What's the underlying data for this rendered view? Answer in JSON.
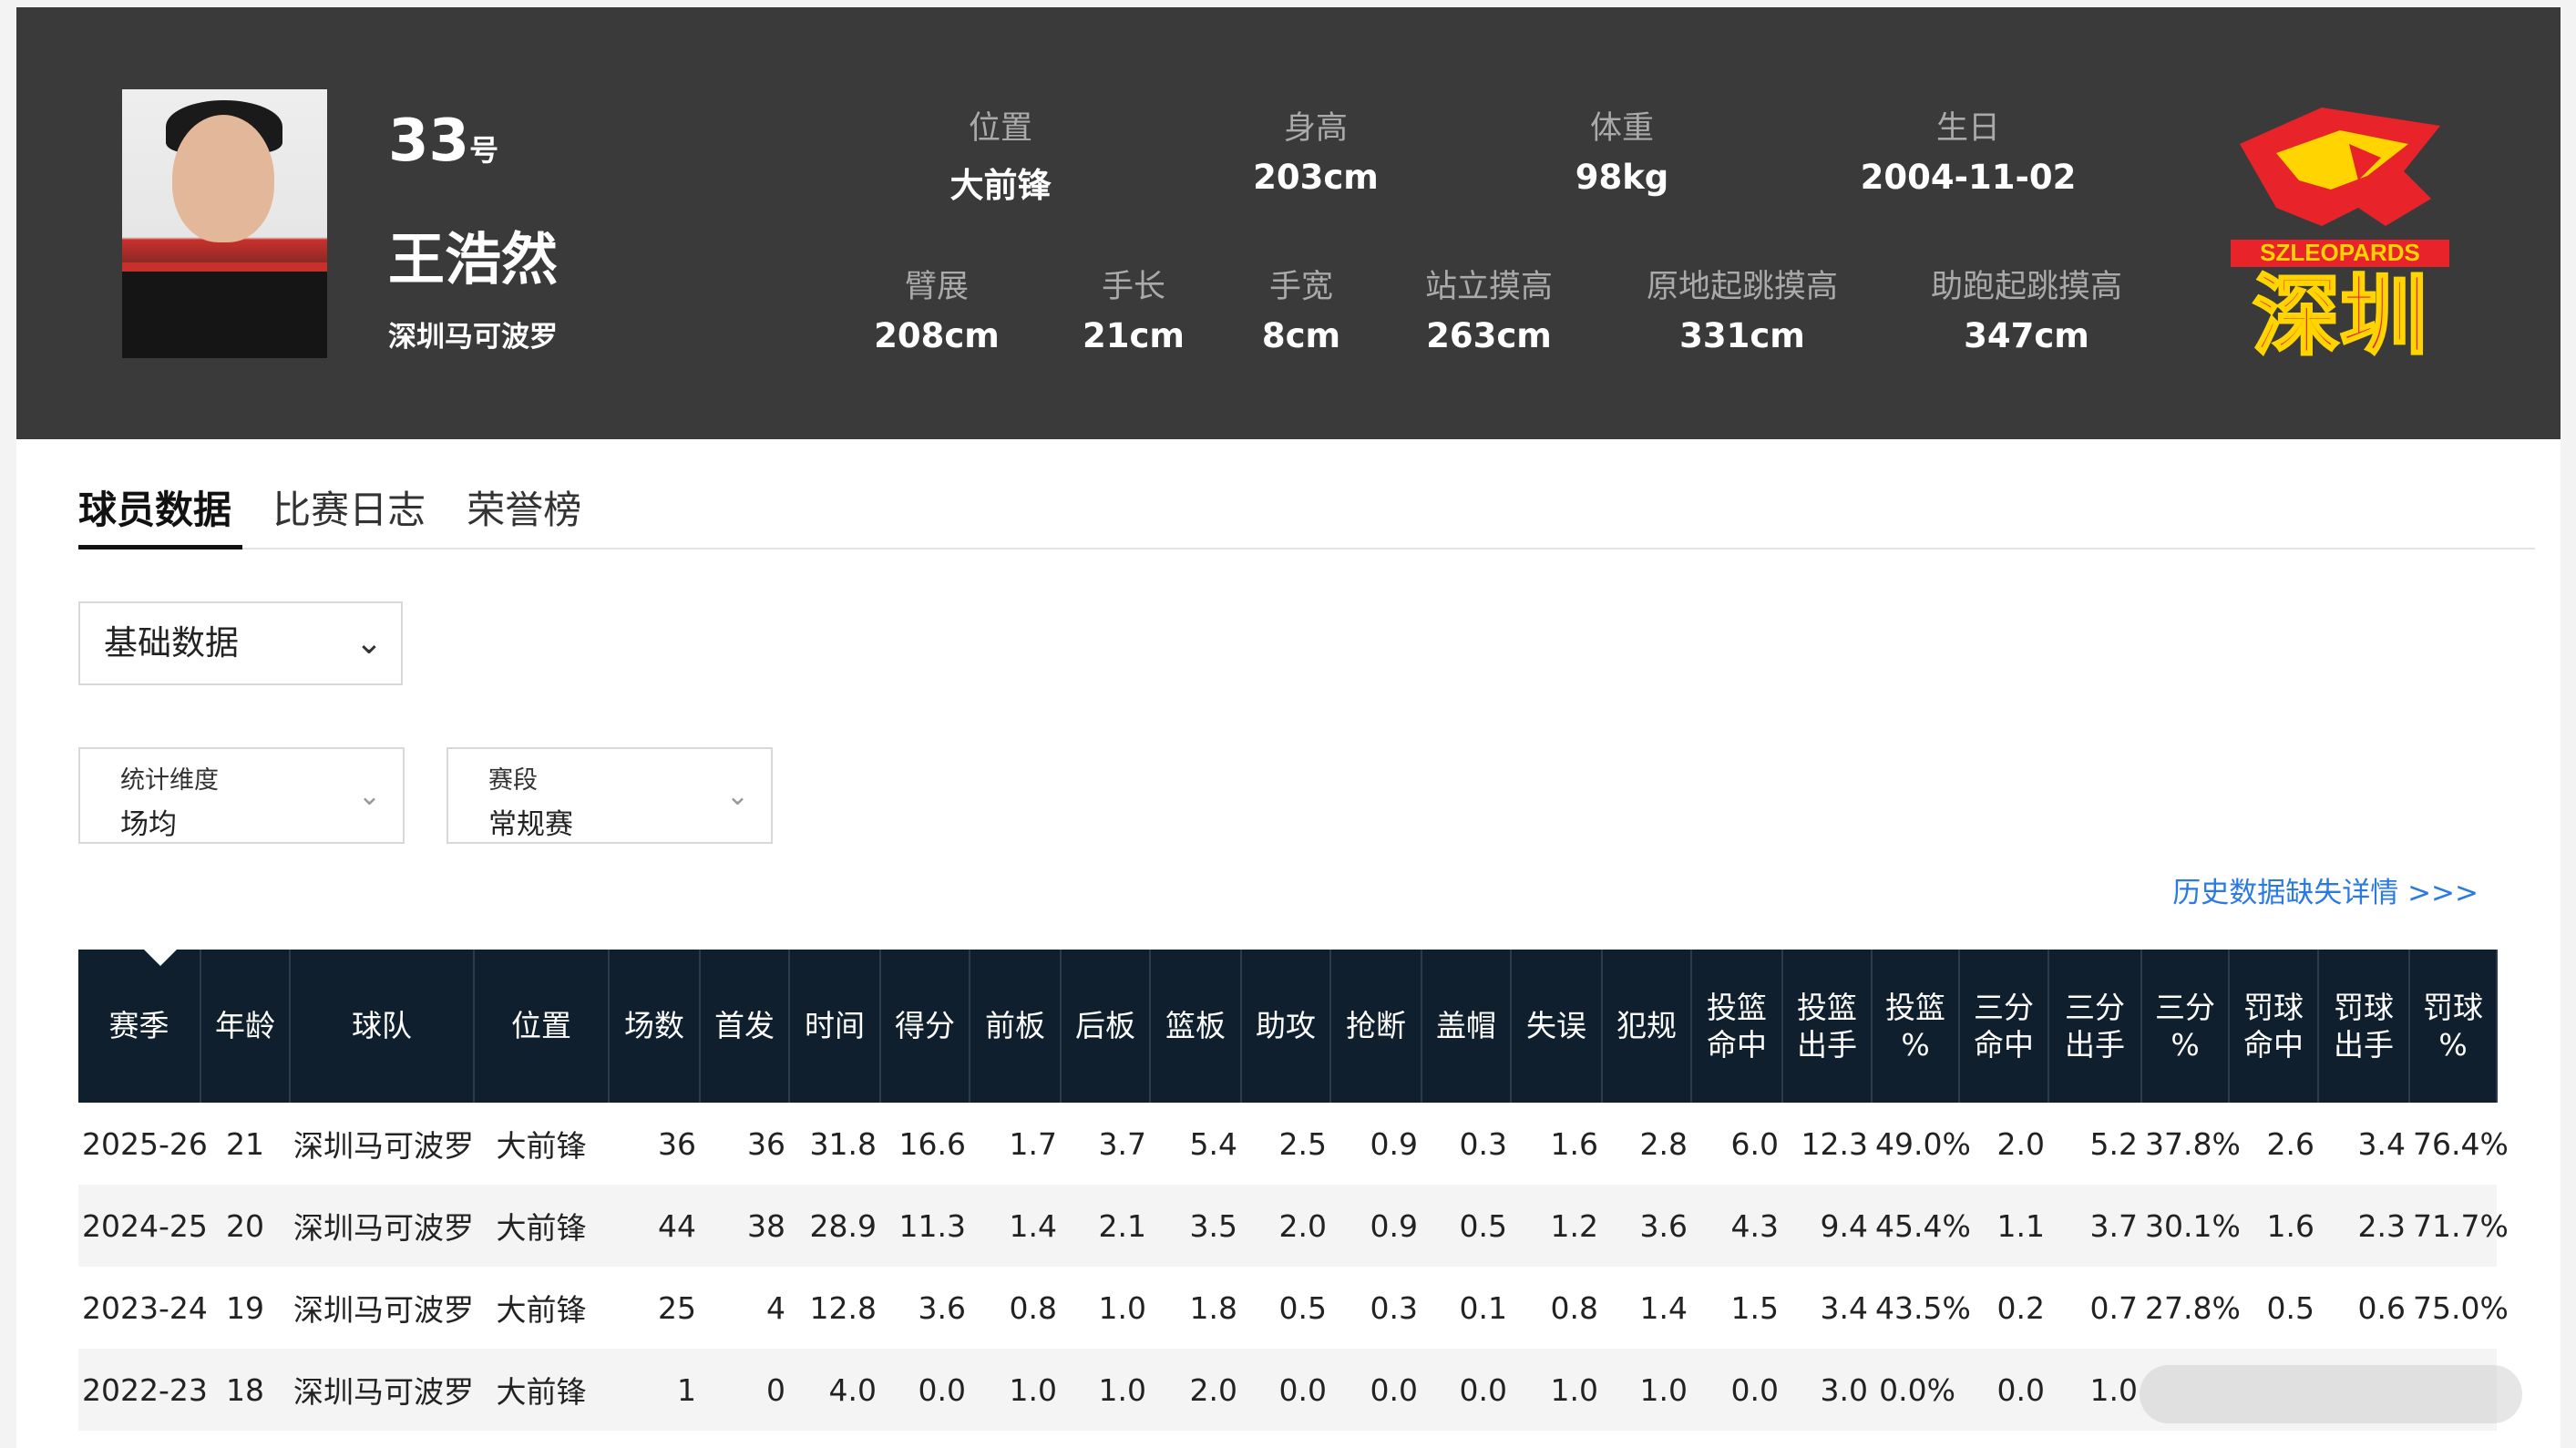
{
  "player": {
    "number": "33",
    "number_suffix": "号",
    "name": "王浩然",
    "team": "深圳马可波罗"
  },
  "stats_top": [
    {
      "label": "位置",
      "value": "大前锋"
    },
    {
      "label": "身高",
      "value": "203cm"
    },
    {
      "label": "体重",
      "value": "98kg"
    },
    {
      "label": "生日",
      "value": "2004-11-02"
    }
  ],
  "stats_bottom": [
    {
      "label": "臂展",
      "value": "208cm"
    },
    {
      "label": "手长",
      "value": "21cm"
    },
    {
      "label": "手宽",
      "value": "8cm"
    },
    {
      "label": "站立摸高",
      "value": "263cm"
    },
    {
      "label": "原地起跳摸高",
      "value": "331cm"
    },
    {
      "label": "助跑起跳摸高",
      "value": "347cm"
    }
  ],
  "logo": {
    "text_en": "SZLEOPARDS",
    "text_cn": "深圳",
    "color": "#e8242a",
    "accent": "#ffd400"
  },
  "tabs": [
    {
      "label": "球员数据",
      "active": true
    },
    {
      "label": "比赛日志",
      "active": false
    },
    {
      "label": "荣誉榜",
      "active": false
    }
  ],
  "data_type_select": {
    "value": "基础数据"
  },
  "filters": [
    {
      "label": "统计维度",
      "value": "场均"
    },
    {
      "label": "赛段",
      "value": "常规赛"
    }
  ],
  "history_link": "历史数据缺失详情 >>>",
  "table": {
    "headers": [
      "赛季",
      "年龄",
      "球队",
      "位置",
      "场数",
      "首发",
      "时间",
      "得分",
      "前板",
      "后板",
      "篮板",
      "助攻",
      "抢断",
      "盖帽",
      "失误",
      "犯规",
      "投篮\n命中",
      "投篮\n出手",
      "投篮\n%",
      "三分\n命中",
      "三分\n出手",
      "三分\n%",
      "罚球\n命中",
      "罚球\n出手",
      "罚球\n%"
    ],
    "rows": [
      [
        "2025-26",
        "21",
        "深圳马可波罗",
        "大前锋",
        "36",
        "36",
        "31.8",
        "16.6",
        "1.7",
        "3.7",
        "5.4",
        "2.5",
        "0.9",
        "0.3",
        "1.6",
        "2.8",
        "6.0",
        "12.3",
        "49.0%",
        "2.0",
        "5.2",
        "37.8%",
        "2.6",
        "3.4",
        "76.4%"
      ],
      [
        "2024-25",
        "20",
        "深圳马可波罗",
        "大前锋",
        "44",
        "38",
        "28.9",
        "11.3",
        "1.4",
        "2.1",
        "3.5",
        "2.0",
        "0.9",
        "0.5",
        "1.2",
        "3.6",
        "4.3",
        "9.4",
        "45.4%",
        "1.1",
        "3.7",
        "30.1%",
        "1.6",
        "2.3",
        "71.7%"
      ],
      [
        "2023-24",
        "19",
        "深圳马可波罗",
        "大前锋",
        "25",
        "4",
        "12.8",
        "3.6",
        "0.8",
        "1.0",
        "1.8",
        "0.5",
        "0.3",
        "0.1",
        "0.8",
        "1.4",
        "1.5",
        "3.4",
        "43.5%",
        "0.2",
        "0.7",
        "27.8%",
        "0.5",
        "0.6",
        "75.0%"
      ],
      [
        "2022-23",
        "18",
        "深圳马可波罗",
        "大前锋",
        "1",
        "0",
        "4.0",
        "0.0",
        "1.0",
        "1.0",
        "2.0",
        "0.0",
        "0.0",
        "0.0",
        "1.0",
        "1.0",
        "0.0",
        "3.0",
        "0.0%",
        "0.0",
        "1.0",
        "",
        "",
        "",
        ""
      ]
    ]
  }
}
